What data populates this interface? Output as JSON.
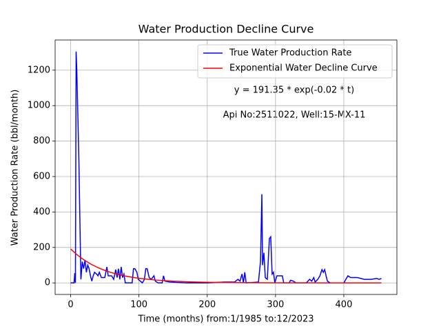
{
  "chart_data": {
    "type": "line",
    "title": "Water Production Decline Curve",
    "x_label": "Time (months) from:1/1985 to:12/2023",
    "y_label": "Water Production Rate (bbl/month)",
    "annotations": [
      "y = 191.35 * exp(-0.02 * t)",
      "Api No:2511022, Well:15-MX-11"
    ],
    "xlim": [
      -22.75,
      477.75
    ],
    "xticks": [
      0,
      100,
      200,
      300,
      400
    ],
    "ylim": [
      -65.25,
      1370.25
    ],
    "yticks": [
      0,
      200,
      400,
      600,
      800,
      1000,
      1200
    ],
    "grid": true,
    "legend": "upper right",
    "series": [
      {
        "name": "True Water Production Rate",
        "color": "#0000ff",
        "x": [
          0,
          5,
          6,
          7,
          8,
          9,
          12,
          15,
          17,
          19,
          21,
          23,
          25,
          27,
          29,
          31,
          33,
          35,
          38,
          40,
          42,
          45,
          50,
          53,
          55,
          60,
          63,
          66,
          68,
          70,
          72,
          74,
          76,
          78,
          80,
          90,
          92,
          94,
          97,
          99,
          105,
          108,
          110,
          112,
          115,
          118,
          122,
          124,
          128,
          134,
          136,
          138,
          145,
          170,
          200,
          225,
          240,
          245,
          248,
          251,
          253,
          255,
          257,
          275,
          278,
          280,
          281,
          283,
          285,
          288,
          291,
          293,
          295,
          297,
          299,
          302,
          310,
          312,
          320,
          322,
          326,
          330,
          345,
          350,
          353,
          356,
          358,
          362,
          365,
          368,
          370,
          372,
          374,
          376,
          380,
          400,
          403,
          406,
          410,
          420,
          430,
          440,
          448,
          452,
          455
        ],
        "values": [
          0,
          0,
          55,
          0,
          1305,
          1200,
          700,
          20,
          120,
          80,
          130,
          60,
          100,
          80,
          40,
          10,
          40,
          60,
          50,
          40,
          60,
          30,
          30,
          90,
          40,
          40,
          20,
          75,
          30,
          80,
          20,
          90,
          30,
          50,
          0,
          0,
          80,
          80,
          60,
          20,
          0,
          20,
          80,
          80,
          30,
          20,
          40,
          10,
          0,
          0,
          40,
          10,
          5,
          0,
          0,
          5,
          5,
          20,
          10,
          50,
          0,
          60,
          0,
          5,
          120,
          500,
          100,
          170,
          30,
          20,
          250,
          260,
          50,
          60,
          0,
          40,
          40,
          0,
          0,
          15,
          10,
          0,
          0,
          20,
          10,
          30,
          5,
          20,
          40,
          75,
          60,
          75,
          40,
          10,
          0,
          0,
          20,
          40,
          30,
          30,
          20,
          20,
          25,
          20,
          25
        ]
      },
      {
        "name": "Exponential Water Decline Curve",
        "color": "#ff0000",
        "x": [
          0,
          10,
          20,
          30,
          40,
          50,
          60,
          70,
          80,
          90,
          100,
          125,
          150,
          175,
          200,
          225,
          250,
          275,
          300,
          325,
          350,
          375,
          400,
          425,
          455
        ],
        "values": [
          191.35,
          156.67,
          128.27,
          105.02,
          85.98,
          70.39,
          57.63,
          47.19,
          38.63,
          31.63,
          25.9,
          15.71,
          9.53,
          5.78,
          3.5,
          2.13,
          1.29,
          0.78,
          0.47,
          0.29,
          0.17,
          0.11,
          0.06,
          0.04,
          0.02
        ]
      }
    ]
  }
}
